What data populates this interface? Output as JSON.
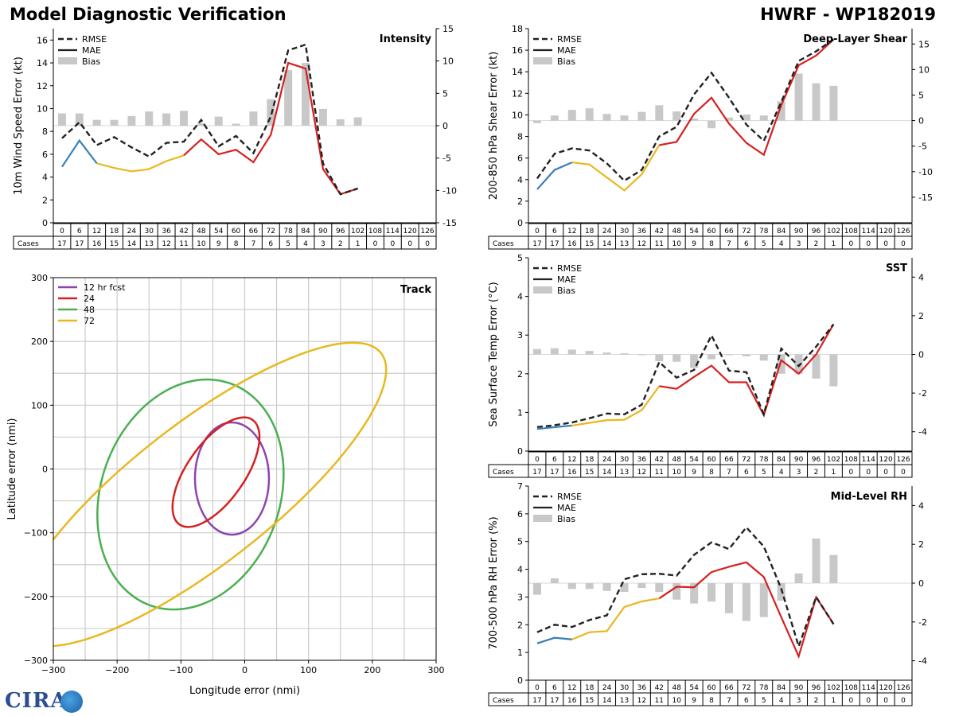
{
  "header": {
    "title_left": "Model Diagnostic Verification",
    "title_right": "HWRF - WP182019"
  },
  "logo": {
    "text": "CIRA"
  },
  "colors": {
    "rmse": "#222222",
    "mae_early": "#3a7fb8",
    "mae_mid": "#e8b820",
    "mae_late": "#d62020",
    "bias": "#c8c8c8",
    "grid": "#cccccc",
    "track_12": "#8e44ad",
    "track_24": "#d62020",
    "track_48": "#4caf50",
    "track_72": "#e8b820"
  },
  "lead_times": [
    "0",
    "6",
    "12",
    "18",
    "24",
    "30",
    "36",
    "42",
    "48",
    "54",
    "60",
    "66",
    "72",
    "78",
    "84",
    "90",
    "96",
    "102",
    "108",
    "114",
    "120",
    "126"
  ],
  "legend_labels": {
    "rmse": "RMSE",
    "mae": "MAE",
    "bias": "Bias"
  },
  "cases_label": "Cases",
  "chart_data": [
    {
      "id": "intensity",
      "type": "line",
      "title": "Intensity",
      "ylabel": "10m Wind Speed Error (kt)",
      "ylim": [
        0,
        17
      ],
      "yticks": [
        0,
        2,
        4,
        6,
        8,
        10,
        12,
        14,
        16
      ],
      "y2lim": [
        -15,
        15
      ],
      "y2ticks": [
        -15,
        -10,
        -5,
        0,
        5,
        10,
        15
      ],
      "rmse": [
        7.4,
        8.8,
        6.8,
        7.5,
        6.6,
        5.8,
        7.0,
        7.1,
        9.0,
        6.7,
        7.6,
        6.1,
        9.3,
        15.1,
        15.6,
        5.2,
        2.5,
        3.0
      ],
      "mae": [
        4.9,
        7.2,
        5.2,
        4.8,
        4.5,
        4.7,
        5.4,
        5.9,
        7.3,
        6.0,
        6.4,
        5.3,
        7.7,
        14.0,
        13.5,
        4.7,
        2.5,
        3.0
      ],
      "bias": [
        1.9,
        1.9,
        0.9,
        0.9,
        1.5,
        2.2,
        1.9,
        2.3,
        0.4,
        1.4,
        0.3,
        2.2,
        4.1,
        8.6,
        9.7,
        2.6,
        1.0,
        1.3
      ],
      "cases": [
        "17",
        "17",
        "16",
        "15",
        "14",
        "13",
        "12",
        "11",
        "10",
        "9",
        "8",
        "7",
        "6",
        "5",
        "4",
        "3",
        "2",
        "1",
        "0",
        "0",
        "0",
        "0"
      ]
    },
    {
      "id": "shear",
      "type": "line",
      "title": "Deep-Layer Shear",
      "ylabel": "200-850 hPa Shear Error (kt)",
      "ylim": [
        0,
        18
      ],
      "yticks": [
        0,
        2,
        4,
        6,
        8,
        10,
        12,
        14,
        16,
        18
      ],
      "y2lim": [
        -20,
        18
      ],
      "y2ticks": [
        -15,
        -10,
        -5,
        0,
        5,
        10,
        15
      ],
      "rmse": [
        4.1,
        6.4,
        6.9,
        6.7,
        5.5,
        3.9,
        4.9,
        8.0,
        8.9,
        11.9,
        13.9,
        11.6,
        9.1,
        7.6,
        11.2,
        15.0,
        15.9,
        17.0
      ],
      "mae": [
        3.1,
        4.9,
        5.6,
        5.4,
        4.2,
        3.0,
        4.5,
        7.2,
        7.5,
        10.1,
        11.6,
        9.2,
        7.4,
        6.3,
        10.9,
        14.6,
        15.5,
        17.0
      ],
      "bias": [
        -0.5,
        1.0,
        2.1,
        2.4,
        1.3,
        1.0,
        1.7,
        3.0,
        1.8,
        0.4,
        -1.5,
        0.6,
        1.2,
        1.0,
        3.8,
        9.2,
        7.3,
        6.8
      ],
      "cases": [
        "17",
        "17",
        "16",
        "15",
        "14",
        "13",
        "12",
        "11",
        "10",
        "9",
        "8",
        "7",
        "6",
        "5",
        "4",
        "3",
        "2",
        "1",
        "0",
        "0",
        "0",
        "0"
      ]
    },
    {
      "id": "sst",
      "type": "line",
      "title": "SST",
      "ylabel": "Sea Surface Temp Error (°C)",
      "ylim": [
        0,
        5
      ],
      "yticks": [
        0,
        1,
        2,
        3,
        4,
        5
      ],
      "y2lim": [
        -5,
        5
      ],
      "y2ticks": [
        -4,
        -2,
        0,
        2,
        4
      ],
      "rmse": [
        0.62,
        0.67,
        0.74,
        0.85,
        0.97,
        0.95,
        1.2,
        2.3,
        1.9,
        2.1,
        2.99,
        2.08,
        2.04,
        0.95,
        2.65,
        2.2,
        2.7,
        3.28
      ],
      "mae": [
        0.57,
        0.62,
        0.66,
        0.73,
        0.8,
        0.81,
        1.06,
        1.68,
        1.61,
        1.92,
        2.21,
        1.78,
        1.78,
        0.93,
        2.35,
        2.0,
        2.5,
        3.28
      ],
      "bias": [
        0.28,
        0.32,
        0.25,
        0.18,
        0.1,
        0.06,
        -0.02,
        -0.35,
        -0.38,
        -0.7,
        -0.25,
        -0.02,
        -0.1,
        -0.32,
        -1.0,
        -1.0,
        -1.25,
        -1.65
      ],
      "cases": [
        "17",
        "17",
        "16",
        "15",
        "14",
        "13",
        "12",
        "11",
        "10",
        "9",
        "8",
        "7",
        "6",
        "5",
        "4",
        "3",
        "2",
        "1",
        "0",
        "0",
        "0",
        "0"
      ]
    },
    {
      "id": "rh",
      "type": "line",
      "title": "Mid-Level RH",
      "ylabel": "700-500 hPa RH Error (%)",
      "ylim": [
        0,
        7
      ],
      "yticks": [
        0,
        1,
        2,
        3,
        4,
        5,
        6,
        7
      ],
      "y2lim": [
        -5,
        5
      ],
      "y2ticks": [
        -4,
        -2,
        0,
        2,
        4
      ],
      "rmse": [
        1.73,
        2.0,
        1.92,
        2.17,
        2.34,
        3.64,
        3.82,
        3.84,
        3.77,
        4.52,
        4.97,
        4.73,
        5.51,
        4.82,
        3.3,
        1.22,
        3.0,
        2.02
      ],
      "mae": [
        1.33,
        1.53,
        1.47,
        1.73,
        1.77,
        2.64,
        2.84,
        2.95,
        3.37,
        3.35,
        3.9,
        4.09,
        4.25,
        3.72,
        2.27,
        0.86,
        2.99,
        2.03
      ],
      "bias": [
        -0.6,
        0.25,
        -0.3,
        -0.3,
        -0.4,
        -0.45,
        -0.25,
        -0.45,
        -0.85,
        -1.05,
        -0.95,
        -1.55,
        -1.95,
        -1.75,
        -0.9,
        0.5,
        2.3,
        1.45
      ],
      "cases": [
        "17",
        "17",
        "16",
        "15",
        "14",
        "13",
        "12",
        "11",
        "10",
        "9",
        "8",
        "7",
        "6",
        "5",
        "4",
        "3",
        "2",
        "1",
        "0",
        "0",
        "0",
        "0"
      ]
    },
    {
      "id": "track",
      "type": "scatter",
      "title": "Track",
      "xlabel": "Longitude error (nmi)",
      "ylabel": "Latitude error (nmi)",
      "xlim": [
        -300,
        300
      ],
      "ylim": [
        -300,
        300
      ],
      "ticks": [
        -300,
        -200,
        -100,
        0,
        100,
        200,
        300
      ],
      "legend": [
        "12 hr fcst",
        "24",
        "48",
        "72"
      ],
      "ellipses": [
        {
          "label": "12 hr fcst",
          "cx": -20,
          "cy": -15,
          "rx": 58,
          "ry": 88,
          "angle": 0
        },
        {
          "label": "24",
          "cx": -45,
          "cy": -5,
          "rx": 45,
          "ry": 100,
          "angle": 35
        },
        {
          "label": "48",
          "cx": -85,
          "cy": -40,
          "rx": 140,
          "ry": 185,
          "angle": 20
        },
        {
          "label": "72",
          "cx": -70,
          "cy": -40,
          "rx": 110,
          "ry": 360,
          "angle": 52
        }
      ]
    }
  ]
}
